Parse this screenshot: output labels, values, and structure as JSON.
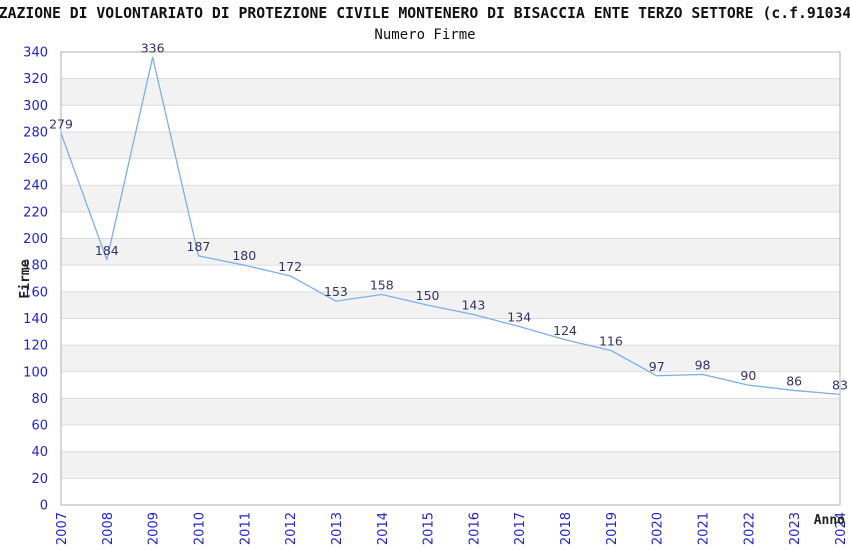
{
  "header": {
    "title_truncated_as_displayed": "ZAZIONE DI VOLONTARIATO DI PROTEZIONE CIVILE MONTENERO DI BISACCIA ENTE TERZO SETTORE (c.f.91034",
    "subtitle": "Numero Firme"
  },
  "chart_data": {
    "type": "line",
    "title": "ZAZIONE DI VOLONTARIATO DI PROTEZIONE CIVILE MONTENERO DI BISACCIA ENTE TERZO SETTORE (c.f.91034",
    "subtitle": "Numero Firme",
    "xlabel": "Anno",
    "ylabel": "Firme",
    "x": [
      2007,
      2008,
      2009,
      2010,
      2011,
      2012,
      2013,
      2014,
      2015,
      2016,
      2017,
      2018,
      2019,
      2020,
      2021,
      2022,
      2023,
      2024
    ],
    "values": [
      279,
      184,
      336,
      187,
      180,
      172,
      153,
      158,
      150,
      143,
      134,
      124,
      116,
      97,
      98,
      90,
      86,
      83
    ],
    "ylim": [
      0,
      340
    ],
    "ytick_step": 20,
    "grid": true,
    "banded_background": true,
    "legend": "none",
    "point_labels_visible": true,
    "colors": {
      "line": "#7db0e8",
      "tick_labels": "#2222cc",
      "point_labels": "#333366",
      "band_fill": "#f2f2f2",
      "gridline": "#dcdcdc",
      "plot_border": "#b0b0b0",
      "title_text": "#111111",
      "axis_title_text": "#222222",
      "background": "#ffffff"
    }
  }
}
